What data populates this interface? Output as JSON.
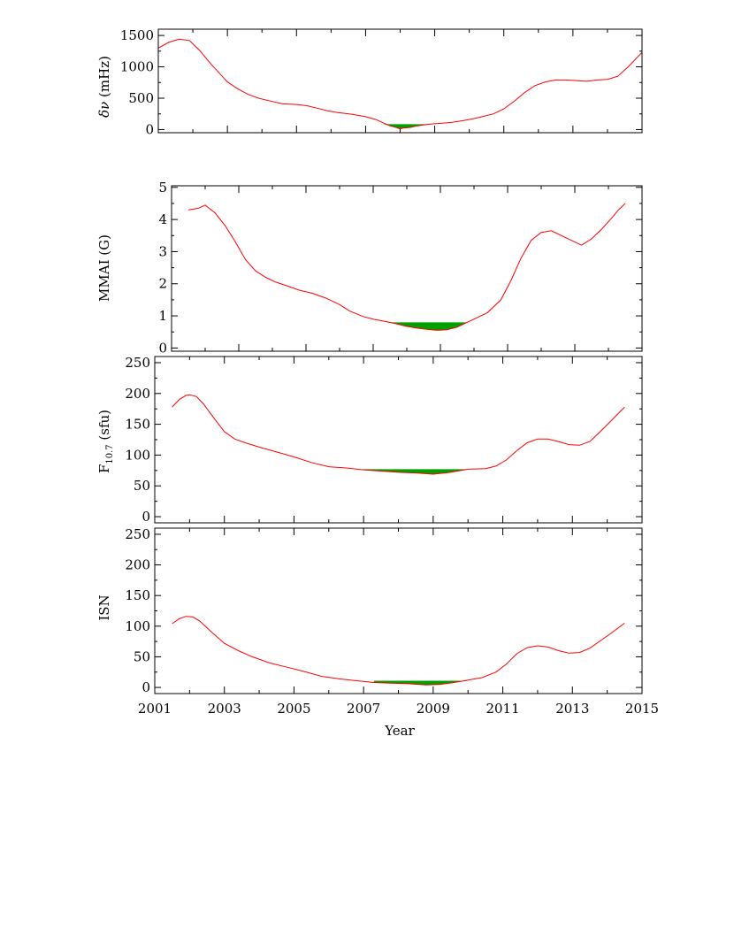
{
  "colors": {
    "curve": "#ff0000",
    "fill": "#00a000",
    "axis": "#000000"
  },
  "chart_data": [
    {
      "type": "line",
      "ylabel_symbol": "δν",
      "ylabel_unit": "(mHz)",
      "xlim": [
        2001,
        2015
      ],
      "ylim": [
        -50,
        1600
      ],
      "yticks": [
        0,
        500,
        1000,
        1500
      ],
      "ytick_labels": [
        "0",
        "500",
        "1000",
        "1500"
      ],
      "minimum_fill": {
        "x_start": 2007.5,
        "x_end": 2008.9,
        "level": 85
      },
      "series": [
        {
          "x": [
            2001.0,
            2001.3,
            2001.6,
            2001.9,
            2002.2,
            2002.5,
            2002.8,
            2003.0,
            2003.3,
            2003.6,
            2003.9,
            2004.2,
            2004.6,
            2005.0,
            2005.3,
            2005.6,
            2005.9,
            2006.2,
            2006.6,
            2007.0,
            2007.3,
            2007.5,
            2007.7,
            2007.9,
            2008.0,
            2008.1,
            2008.3,
            2008.5,
            2008.7,
            2008.9,
            2009.2,
            2009.5,
            2009.8,
            2010.1,
            2010.4,
            2010.7,
            2011.0,
            2011.3,
            2011.6,
            2011.9,
            2012.2,
            2012.5,
            2012.8,
            2013.1,
            2013.4,
            2013.7,
            2014.0,
            2014.3,
            2014.6,
            2015.0
          ],
          "y": [
            1300,
            1390,
            1440,
            1420,
            1260,
            1060,
            880,
            760,
            650,
            560,
            500,
            460,
            410,
            400,
            380,
            340,
            300,
            270,
            245,
            205,
            160,
            110,
            60,
            30,
            10,
            25,
            35,
            60,
            75,
            90,
            100,
            115,
            140,
            170,
            210,
            250,
            330,
            450,
            590,
            700,
            760,
            790,
            790,
            780,
            770,
            790,
            800,
            850,
            1000,
            1230
          ]
        }
      ]
    },
    {
      "type": "line",
      "ylabel": "MMAI (G)",
      "xlim": [
        2001,
        2015
      ],
      "ylim": [
        -0.1,
        5.05
      ],
      "yticks": [
        0,
        1,
        2,
        3,
        4,
        5
      ],
      "ytick_labels": [
        "0",
        "1",
        "2",
        "3",
        "4",
        "5"
      ],
      "minimum_fill": {
        "x_start": 2007.4,
        "x_end": 2009.8,
        "level": 0.8
      },
      "series": [
        {
          "x": [
            2001.5,
            2001.8,
            2002.0,
            2002.3,
            2002.6,
            2002.9,
            2003.2,
            2003.5,
            2003.8,
            2004.1,
            2004.4,
            2004.8,
            2005.2,
            2005.6,
            2006.0,
            2006.3,
            2006.7,
            2007.0,
            2007.4,
            2007.7,
            2008.0,
            2008.3,
            2008.6,
            2008.9,
            2009.2,
            2009.5,
            2009.8,
            2010.1,
            2010.4,
            2010.8,
            2011.1,
            2011.4,
            2011.7,
            2012.0,
            2012.3,
            2012.6,
            2012.9,
            2013.2,
            2013.5,
            2013.8,
            2014.1,
            2014.3,
            2014.5
          ],
          "y": [
            4.3,
            4.35,
            4.45,
            4.2,
            3.8,
            3.3,
            2.75,
            2.4,
            2.2,
            2.05,
            1.95,
            1.8,
            1.7,
            1.55,
            1.35,
            1.15,
            0.98,
            0.9,
            0.82,
            0.75,
            0.67,
            0.62,
            0.58,
            0.55,
            0.57,
            0.65,
            0.8,
            0.95,
            1.1,
            1.5,
            2.1,
            2.8,
            3.35,
            3.6,
            3.65,
            3.5,
            3.35,
            3.2,
            3.4,
            3.7,
            4.05,
            4.3,
            4.5
          ]
        }
      ]
    },
    {
      "type": "line",
      "ylabel_main": "F",
      "ylabel_sub": "10.7",
      "ylabel_unit": "(sfu)",
      "xlim": [
        2001,
        2015
      ],
      "ylim": [
        -10,
        260
      ],
      "yticks": [
        0,
        50,
        100,
        150,
        200,
        250
      ],
      "ytick_labels": [
        "0",
        "50",
        "100",
        "150",
        "200",
        "250"
      ],
      "minimum_fill": {
        "x_start": 2007.0,
        "x_end": 2010.3,
        "level": 77
      },
      "series": [
        {
          "x": [
            2001.5,
            2001.7,
            2001.9,
            2002.0,
            2002.2,
            2002.4,
            2002.7,
            2003.0,
            2003.3,
            2003.6,
            2004.0,
            2004.5,
            2005.0,
            2005.5,
            2006.0,
            2006.5,
            2007.0,
            2007.5,
            2008.0,
            2008.5,
            2009.0,
            2009.5,
            2010.0,
            2010.5,
            2010.8,
            2011.1,
            2011.4,
            2011.7,
            2012.0,
            2012.3,
            2012.6,
            2012.9,
            2013.2,
            2013.5,
            2013.8,
            2014.1,
            2014.5
          ],
          "y": [
            178,
            190,
            197,
            198,
            195,
            183,
            160,
            138,
            126,
            120,
            113,
            105,
            97,
            88,
            81,
            79,
            76,
            74,
            72,
            71,
            69,
            72,
            77,
            78,
            82,
            92,
            107,
            120,
            126,
            126,
            122,
            117,
            116,
            122,
            138,
            155,
            178
          ]
        }
      ]
    },
    {
      "type": "line",
      "ylabel": "ISN",
      "xlabel": "Year",
      "xlim": [
        2001,
        2015
      ],
      "ylim": [
        -10,
        260
      ],
      "xticks": [
        2001,
        2003,
        2005,
        2007,
        2009,
        2011,
        2013,
        2015
      ],
      "xtick_labels": [
        "2001",
        "2003",
        "2005",
        "2007",
        "2009",
        "2011",
        "2013",
        "2015"
      ],
      "yticks": [
        0,
        50,
        100,
        150,
        200,
        250
      ],
      "ytick_labels": [
        "0",
        "50",
        "100",
        "150",
        "200",
        "250"
      ],
      "minimum_fill": {
        "x_start": 2007.3,
        "x_end": 2010.2,
        "level": 11
      },
      "series": [
        {
          "x": [
            2001.5,
            2001.7,
            2001.9,
            2002.1,
            2002.3,
            2002.6,
            2003.0,
            2003.4,
            2003.8,
            2004.3,
            2004.8,
            2005.3,
            2005.8,
            2006.3,
            2006.8,
            2007.3,
            2007.8,
            2008.3,
            2008.8,
            2009.2,
            2009.6,
            2010.0,
            2010.4,
            2010.8,
            2011.1,
            2011.4,
            2011.7,
            2012.0,
            2012.3,
            2012.6,
            2012.9,
            2013.2,
            2013.5,
            2013.8,
            2014.1,
            2014.5
          ],
          "y": [
            104,
            112,
            116,
            115,
            108,
            92,
            72,
            60,
            50,
            40,
            33,
            26,
            18,
            14,
            11,
            8,
            7,
            6,
            4,
            5,
            8,
            12,
            16,
            25,
            38,
            55,
            65,
            68,
            66,
            60,
            56,
            57,
            64,
            76,
            88,
            105
          ]
        }
      ]
    }
  ]
}
